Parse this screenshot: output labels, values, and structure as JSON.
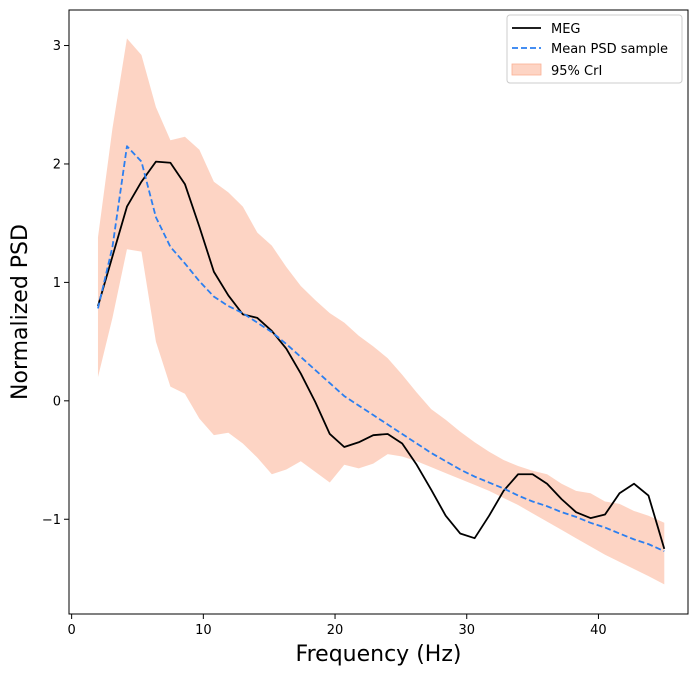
{
  "chart_data": {
    "type": "line",
    "xlabel": "Frequency (Hz)",
    "ylabel": "Normalized PSD",
    "xlim": [
      -0.2,
      46.8
    ],
    "ylim": [
      -1.8,
      3.3
    ],
    "xticks": [
      0,
      10,
      20,
      30,
      40
    ],
    "xtick_labels": [
      "0",
      "10",
      "20",
      "30",
      "40"
    ],
    "yticks": [
      -1,
      0,
      1,
      2,
      3
    ],
    "ytick_labels": [
      "−1",
      "0",
      "1",
      "2",
      "3"
    ],
    "grid": false,
    "legend_position": "top-right",
    "x": [
      2,
      3.1,
      4.2,
      5.3,
      6.4,
      7.5,
      8.6,
      9.7,
      10.8,
      11.9,
      13,
      14.1,
      15.2,
      16.3,
      17.4,
      18.5,
      19.6,
      20.7,
      21.8,
      22.9,
      24,
      25.1,
      26.2,
      27.3,
      28.4,
      29.5,
      30.6,
      31.7,
      32.8,
      33.9,
      35,
      36.1,
      37.2,
      38.3,
      39.4,
      40.5,
      41.6,
      42.7,
      43.8,
      45
    ],
    "series": [
      {
        "name": "MEG",
        "style": "solid",
        "color": "#000000",
        "values": [
          0.8,
          1.22,
          1.64,
          1.85,
          2.02,
          2.01,
          1.83,
          1.47,
          1.09,
          0.89,
          0.73,
          0.7,
          0.59,
          0.44,
          0.23,
          -0.01,
          -0.28,
          -0.39,
          -0.35,
          -0.29,
          -0.28,
          -0.36,
          -0.54,
          -0.75,
          -0.97,
          -1.12,
          -1.16,
          -0.97,
          -0.76,
          -0.62,
          -0.62,
          -0.7,
          -0.83,
          -0.94,
          -0.99,
          -0.96,
          -0.78,
          -0.7,
          -0.8,
          -1.25
        ]
      },
      {
        "name": "Mean PSD sample",
        "style": "dashed",
        "color": "#2b7ff0",
        "values": [
          0.78,
          1.3,
          2.15,
          2.02,
          1.55,
          1.3,
          1.16,
          1.01,
          0.88,
          0.8,
          0.74,
          0.66,
          0.58,
          0.48,
          0.37,
          0.26,
          0.15,
          0.04,
          -0.04,
          -0.12,
          -0.2,
          -0.28,
          -0.36,
          -0.44,
          -0.51,
          -0.58,
          -0.64,
          -0.69,
          -0.74,
          -0.8,
          -0.85,
          -0.89,
          -0.94,
          -0.98,
          -1.03,
          -1.07,
          -1.12,
          -1.17,
          -1.21,
          -1.27
        ]
      }
    ],
    "band": {
      "name": "95% CrI",
      "color": "#fbb094",
      "upper": [
        1.38,
        2.3,
        3.06,
        2.92,
        2.48,
        2.2,
        2.23,
        2.12,
        1.85,
        1.76,
        1.64,
        1.42,
        1.31,
        1.13,
        0.97,
        0.85,
        0.74,
        0.66,
        0.55,
        0.46,
        0.36,
        0.22,
        0.07,
        -0.07,
        -0.16,
        -0.26,
        -0.35,
        -0.43,
        -0.5,
        -0.55,
        -0.59,
        -0.62,
        -0.7,
        -0.76,
        -0.78,
        -0.85,
        -0.87,
        -0.93,
        -0.97,
        -1.03
      ],
      "lower": [
        0.2,
        0.7,
        1.28,
        1.26,
        0.5,
        0.12,
        0.06,
        -0.15,
        -0.29,
        -0.27,
        -0.36,
        -0.48,
        -0.62,
        -0.58,
        -0.51,
        -0.6,
        -0.69,
        -0.54,
        -0.57,
        -0.53,
        -0.45,
        -0.47,
        -0.51,
        -0.56,
        -0.61,
        -0.66,
        -0.71,
        -0.76,
        -0.82,
        -0.88,
        -0.95,
        -1.02,
        -1.09,
        -1.16,
        -1.23,
        -1.3,
        -1.36,
        -1.42,
        -1.48,
        -1.55
      ]
    },
    "legend": [
      "MEG",
      "Mean PSD sample",
      "95% CrI"
    ]
  }
}
